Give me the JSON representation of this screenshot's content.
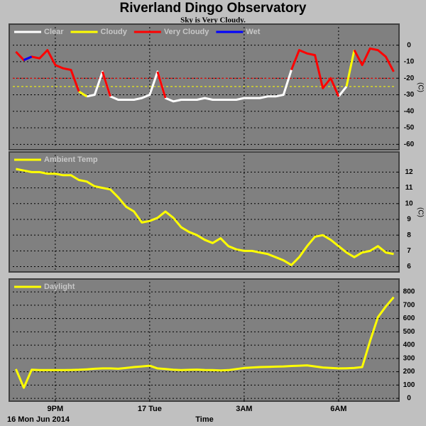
{
  "chart_data": [
    {
      "type": "line",
      "title": "Riverland Dingo Observatory",
      "subtitle": "Sky is Very Cloudy.",
      "ylabel": "(C)",
      "x": [
        19.75,
        20,
        20.25,
        20.5,
        20.75,
        21,
        21.25,
        21.5,
        21.75,
        22,
        22.25,
        22.5,
        22.75,
        23,
        23.25,
        23.5,
        23.75,
        24,
        24.25,
        24.5,
        24.75,
        25,
        25.25,
        25.5,
        25.75,
        26,
        26.25,
        26.5,
        26.75,
        27,
        27.25,
        27.5,
        27.75,
        28,
        28.25,
        28.5,
        28.75,
        29,
        29.25,
        29.5,
        29.75,
        30,
        30.25,
        30.5,
        30.75,
        31,
        31.25,
        31.5,
        31.75
      ],
      "series": [
        {
          "name": "Clear",
          "color": "#ffffff",
          "values": [
            null,
            null,
            null,
            null,
            null,
            null,
            null,
            null,
            null,
            -31,
            -30,
            -16,
            -31,
            -33,
            -33,
            -33,
            -32,
            -30,
            -16,
            -32,
            -34,
            -33,
            -33,
            -33,
            -32,
            -33,
            -33,
            -33,
            -33,
            -32,
            -32,
            -32,
            -31,
            -31,
            -30,
            -15,
            null,
            null,
            null,
            null,
            null,
            -31,
            -25,
            null,
            null,
            null,
            null,
            null,
            null
          ]
        },
        {
          "name": "Cloudy",
          "color": "#ffff00",
          "values": [
            null,
            null,
            null,
            null,
            null,
            null,
            null,
            null,
            -28,
            -31,
            null,
            null,
            null,
            null,
            null,
            null,
            null,
            null,
            null,
            null,
            null,
            null,
            null,
            null,
            null,
            null,
            null,
            null,
            null,
            null,
            null,
            null,
            null,
            null,
            null,
            null,
            null,
            null,
            null,
            -26,
            -20,
            null,
            -25,
            -3,
            null,
            null,
            null,
            null,
            null
          ]
        },
        {
          "name": "Very Cloudy",
          "color": "#ff0000",
          "values": [
            -4,
            -9,
            -7,
            -8,
            -3,
            -12,
            -14,
            -15,
            -28,
            null,
            null,
            -16,
            -31,
            null,
            null,
            null,
            null,
            null,
            -16,
            -32,
            null,
            null,
            null,
            null,
            null,
            null,
            null,
            null,
            null,
            null,
            null,
            null,
            null,
            null,
            null,
            -15,
            -3,
            -5,
            -6,
            -26,
            -20,
            -31,
            null,
            -3,
            -12,
            -2,
            -3,
            -7,
            -16
          ]
        },
        {
          "name": "Wet",
          "color": "#0000ff",
          "values": [
            null,
            -9,
            -7,
            null,
            null,
            null,
            null,
            null,
            null,
            null,
            null,
            null,
            null,
            null,
            null,
            null,
            null,
            null,
            null,
            null,
            null,
            null,
            null,
            null,
            null,
            null,
            null,
            null,
            null,
            null,
            null,
            null,
            null,
            null,
            null,
            null,
            null,
            null,
            null,
            null,
            null,
            null,
            null,
            null,
            null,
            null,
            null,
            null,
            null
          ]
        }
      ],
      "reference_lines": [
        {
          "value": -20,
          "color": "#ff0000"
        },
        {
          "value": -25,
          "color": "#ffff00"
        }
      ],
      "xlim": [
        19.65,
        31.83
      ],
      "ylim": [
        -62,
        11
      ],
      "yticks": [
        0,
        -10,
        -20,
        -30,
        -40,
        -50,
        -60
      ],
      "grid": true
    },
    {
      "type": "line",
      "ylabel": "(C)",
      "x": [
        19.75,
        20,
        20.25,
        20.5,
        20.75,
        21,
        21.25,
        21.5,
        21.75,
        22,
        22.25,
        22.5,
        22.75,
        23,
        23.25,
        23.5,
        23.75,
        24,
        24.25,
        24.5,
        24.75,
        25,
        25.25,
        25.5,
        25.75,
        26,
        26.25,
        26.5,
        26.75,
        27,
        27.25,
        27.5,
        27.75,
        28,
        28.25,
        28.5,
        28.75,
        29,
        29.25,
        29.5,
        29.75,
        30,
        30.25,
        30.5,
        30.75,
        31,
        31.25,
        31.5,
        31.75
      ],
      "series": [
        {
          "name": "Ambient Temp",
          "color": "#ffff00",
          "values": [
            12.2,
            12.1,
            12.0,
            12.0,
            11.9,
            11.9,
            11.8,
            11.8,
            11.5,
            11.4,
            11.1,
            11.0,
            10.9,
            10.4,
            9.8,
            9.5,
            8.8,
            8.9,
            9.1,
            9.5,
            9.1,
            8.5,
            8.2,
            8.0,
            7.7,
            7.5,
            7.8,
            7.3,
            7.1,
            7.0,
            7.0,
            6.9,
            6.8,
            6.6,
            6.4,
            6.1,
            6.6,
            7.3,
            7.9,
            8.0,
            7.7,
            7.3,
            6.9,
            6.6,
            6.9,
            7.0,
            7.3,
            6.9,
            6.8
          ]
        }
      ],
      "xlim": [
        19.65,
        31.83
      ],
      "ylim": [
        5.8,
        13.1
      ],
      "yticks": [
        6,
        7,
        8,
        9,
        10,
        11,
        12
      ],
      "grid": true
    },
    {
      "type": "line",
      "xlabel": "Time",
      "date_label": "16 Mon Jun 2014",
      "x": [
        19.75,
        20,
        20.25,
        20.5,
        20.75,
        21,
        21.25,
        21.5,
        21.75,
        22,
        22.25,
        22.5,
        22.75,
        23,
        23.25,
        23.5,
        23.75,
        24,
        24.25,
        24.5,
        24.75,
        25,
        25.25,
        25.5,
        25.75,
        26,
        26.25,
        26.5,
        26.75,
        27,
        27.25,
        27.5,
        27.75,
        28,
        28.25,
        28.5,
        28.75,
        29,
        29.25,
        29.5,
        29.75,
        30,
        30.25,
        30.5,
        30.75,
        31,
        31.25,
        31.5,
        31.75
      ],
      "series": [
        {
          "name": "Daylight",
          "color": "#ffff00",
          "values": [
            220,
            80,
            215,
            212,
            212,
            212,
            212,
            213,
            215,
            218,
            222,
            225,
            225,
            222,
            228,
            235,
            240,
            245,
            225,
            220,
            215,
            212,
            214,
            216,
            213,
            212,
            210,
            212,
            220,
            228,
            232,
            235,
            236,
            238,
            240,
            243,
            245,
            248,
            240,
            232,
            228,
            225,
            226,
            228,
            235,
            430,
            610,
            690,
            760
          ]
        }
      ],
      "xlim": [
        19.65,
        31.83
      ],
      "ylim": [
        -5,
        875
      ],
      "yticks": [
        0,
        100,
        200,
        300,
        400,
        500,
        600,
        700,
        800
      ],
      "xticks": [
        {
          "value": 21,
          "label": "9PM"
        },
        {
          "value": 24,
          "label": "17 Tue"
        },
        {
          "value": 27,
          "label": "3AM"
        },
        {
          "value": 30,
          "label": "6AM"
        }
      ],
      "grid": true
    }
  ]
}
